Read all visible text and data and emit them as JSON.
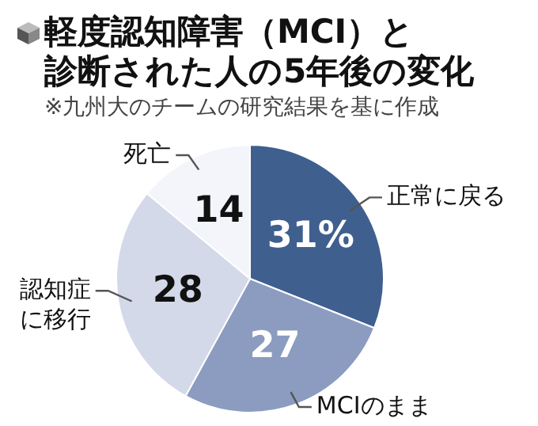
{
  "chart_data": {
    "type": "pie",
    "title": "軽度認知障害（MCI）と診断された人の5年後の変化",
    "subtitle": "※九州大のチームの研究結果を基に作成",
    "categories": [
      "正常に戻る",
      "MCIのまま",
      "認知症に移行",
      "死亡"
    ],
    "values": [
      31,
      27,
      28,
      14
    ],
    "colors": [
      "#3f5f8f",
      "#8b9cc0",
      "#d3d9e8",
      "#f3f5fa"
    ],
    "value_labels": [
      "31%",
      "27",
      "28",
      "14"
    ],
    "legend": false
  }
}
